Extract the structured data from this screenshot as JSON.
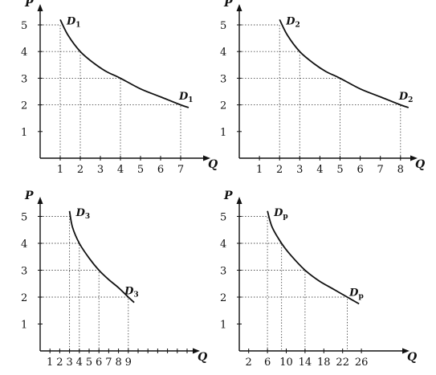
{
  "chart_data": [
    {
      "type": "line",
      "xlabel": "Q",
      "ylabel": "P",
      "xlim": [
        0,
        8
      ],
      "ylim": [
        0,
        5.5
      ],
      "x_ticks": [
        1,
        2,
        3,
        4,
        5,
        6,
        7
      ],
      "y_ticks": [
        1,
        2,
        3,
        4,
        5
      ],
      "curve_label": {
        "main": "D",
        "sub": "1"
      },
      "series": [
        {
          "x": [
            1,
            1.4,
            2,
            2.7,
            3.3,
            4,
            5,
            6,
            7,
            7.4
          ],
          "y": [
            5.2,
            4.6,
            4,
            3.55,
            3.25,
            3,
            2.6,
            2.3,
            2,
            1.9
          ]
        }
      ],
      "guides": [
        {
          "x": 1,
          "y": 5
        },
        {
          "x": 2,
          "y": 4
        },
        {
          "x": 4,
          "y": 3
        },
        {
          "x": 7,
          "y": 2
        }
      ]
    },
    {
      "type": "line",
      "xlabel": "Q",
      "ylabel": "P",
      "xlim": [
        0,
        8.6
      ],
      "ylim": [
        0,
        5.5
      ],
      "x_ticks": [
        1,
        2,
        3,
        4,
        5,
        6,
        7,
        8
      ],
      "y_ticks": [
        1,
        2,
        3,
        4,
        5
      ],
      "curve_label": {
        "main": "D",
        "sub": "2"
      },
      "series": [
        {
          "x": [
            2,
            2.4,
            3,
            3.7,
            4.3,
            5,
            6,
            7,
            8,
            8.4
          ],
          "y": [
            5.2,
            4.6,
            4,
            3.55,
            3.25,
            3,
            2.6,
            2.3,
            2,
            1.9
          ]
        }
      ],
      "guides": [
        {
          "x": 2,
          "y": 5
        },
        {
          "x": 3,
          "y": 4
        },
        {
          "x": 5,
          "y": 3
        },
        {
          "x": 8,
          "y": 2
        }
      ]
    },
    {
      "type": "line",
      "xlabel": "Q",
      "ylabel": "P",
      "xlim": [
        0,
        16
      ],
      "ylim": [
        0,
        5.5
      ],
      "x_ticks": [
        1,
        2,
        3,
        4,
        5,
        6,
        7,
        8,
        9
      ],
      "minor_ticks": [
        10,
        11,
        12,
        13,
        14,
        15
      ],
      "y_ticks": [
        1,
        2,
        3,
        4,
        5
      ],
      "curve_label": {
        "main": "D",
        "sub": "3"
      },
      "series": [
        {
          "x": [
            3,
            3.3,
            4,
            5,
            6,
            7,
            8,
            9,
            9.6
          ],
          "y": [
            5.2,
            4.6,
            4,
            3.45,
            3,
            2.65,
            2.35,
            2,
            1.8
          ]
        }
      ],
      "guides": [
        {
          "x": 3,
          "y": 5
        },
        {
          "x": 4,
          "y": 4
        },
        {
          "x": 6,
          "y": 3
        },
        {
          "x": 9,
          "y": 2
        }
      ]
    },
    {
      "type": "line",
      "xlabel": "Q",
      "ylabel": "P",
      "xlim": [
        0,
        29
      ],
      "ylim": [
        0,
        5.5
      ],
      "x_ticks": [
        2,
        6,
        10,
        14,
        18,
        22,
        26
      ],
      "y_ticks": [
        1,
        2,
        3,
        4,
        5
      ],
      "curve_label": {
        "main": "D",
        "sub": "p"
      },
      "series": [
        {
          "x": [
            6,
            7,
            9,
            11,
            14,
            17,
            20,
            23,
            25.5
          ],
          "y": [
            5.2,
            4.6,
            4,
            3.55,
            3,
            2.6,
            2.3,
            2,
            1.75
          ]
        }
      ],
      "guides": [
        {
          "x": 6,
          "y": 5
        },
        {
          "x": 9,
          "y": 4
        },
        {
          "x": 14,
          "y": 3
        },
        {
          "x": 23,
          "y": 2
        }
      ]
    }
  ]
}
